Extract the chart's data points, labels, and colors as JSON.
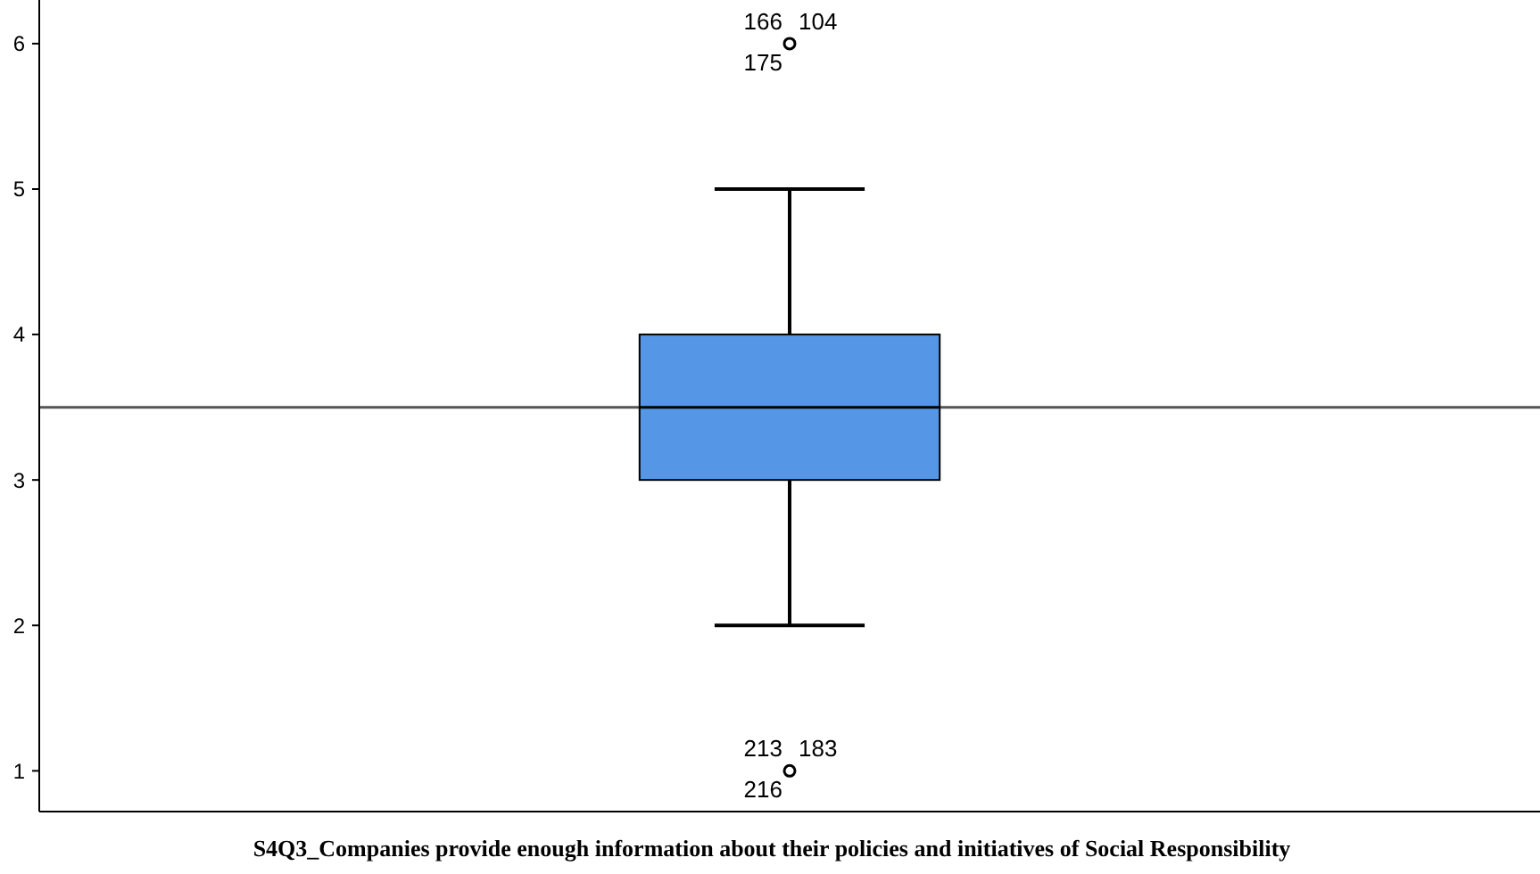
{
  "chart_data": {
    "type": "box",
    "xlabel": "S4Q3_Companies provide enough information about their policies and initiatives of Social Responsibility",
    "categories": [
      null
    ],
    "boxes": [
      {
        "low": 2,
        "q1": 3,
        "median": 3.5,
        "q3": 4,
        "high": 5,
        "outliers": [
          6,
          1
        ]
      }
    ],
    "color": "#5596e6",
    "ylim": [
      0.72,
      6.3
    ],
    "yticks": [
      1,
      2,
      3,
      4,
      5,
      6
    ],
    "ref_lines": [
      {
        "axis": "y",
        "value": 3.5
      }
    ],
    "annotations": [
      "166",
      "104",
      "175",
      "213",
      "183",
      "216"
    ]
  }
}
